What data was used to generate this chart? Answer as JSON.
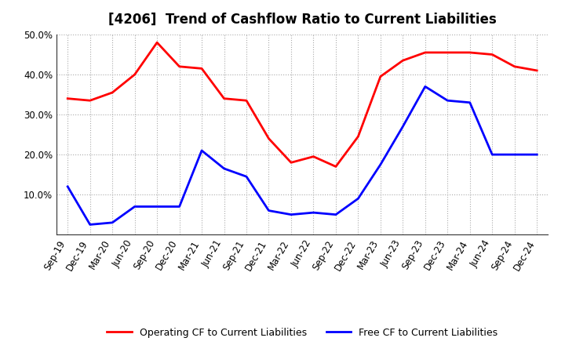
{
  "title": "[4206]  Trend of Cashflow Ratio to Current Liabilities",
  "x_labels": [
    "Sep-19",
    "Dec-19",
    "Mar-20",
    "Jun-20",
    "Sep-20",
    "Dec-20",
    "Mar-21",
    "Jun-21",
    "Sep-21",
    "Dec-21",
    "Mar-22",
    "Jun-22",
    "Sep-22",
    "Dec-22",
    "Mar-23",
    "Jun-23",
    "Sep-23",
    "Dec-23",
    "Mar-24",
    "Jun-24",
    "Sep-24",
    "Dec-24"
  ],
  "operating_cf": [
    0.34,
    0.335,
    0.355,
    0.4,
    0.48,
    0.42,
    0.415,
    0.34,
    0.335,
    0.24,
    0.18,
    0.195,
    0.17,
    0.245,
    0.395,
    0.435,
    0.455,
    0.455,
    0.455,
    0.45,
    0.42,
    0.41
  ],
  "free_cf": [
    0.12,
    0.025,
    0.03,
    0.07,
    0.07,
    0.07,
    0.21,
    0.165,
    0.145,
    0.06,
    0.05,
    0.055,
    0.05,
    0.09,
    0.175,
    0.27,
    0.37,
    0.335,
    0.33,
    0.2,
    0.2,
    0.2
  ],
  "operating_color": "#FF0000",
  "free_color": "#0000FF",
  "ylim": [
    0.0,
    0.5
  ],
  "yticks": [
    0.1,
    0.2,
    0.3,
    0.4,
    0.5
  ],
  "legend_operating": "Operating CF to Current Liabilities",
  "legend_free": "Free CF to Current Liabilities",
  "background_color": "#FFFFFF",
  "grid_color": "#AAAAAA",
  "title_fontsize": 12,
  "label_fontsize": 8.5
}
